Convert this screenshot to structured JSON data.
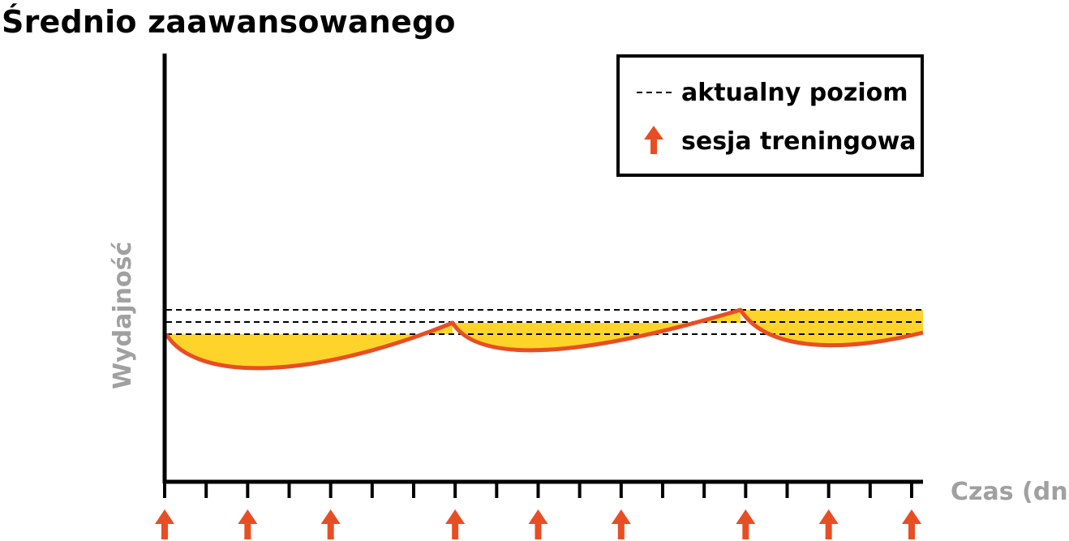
{
  "title": "Średnio zaawansowanego",
  "legend": {
    "current_level_label": "aktualny poziom",
    "training_session_label": "sesja treningowa"
  },
  "axes": {
    "y_label": "Wydajność",
    "x_label": "Czas (dni)"
  },
  "colors": {
    "curve": "#e84e24",
    "fill": "#ffd42a",
    "axis": "#000000",
    "axis_label": "#a0a0a0",
    "arrow": "#e84e24",
    "dashed": "#000000"
  },
  "chart_data": {
    "type": "line",
    "day_ticks": 19,
    "training_session_days": [
      0,
      2,
      4,
      7,
      9,
      11,
      14,
      16,
      18
    ],
    "current_levels": [
      "before first session",
      "after second block",
      "after third block"
    ],
    "note_shape": "supercompensation: performance dips after each session and recovers above the previous level"
  }
}
